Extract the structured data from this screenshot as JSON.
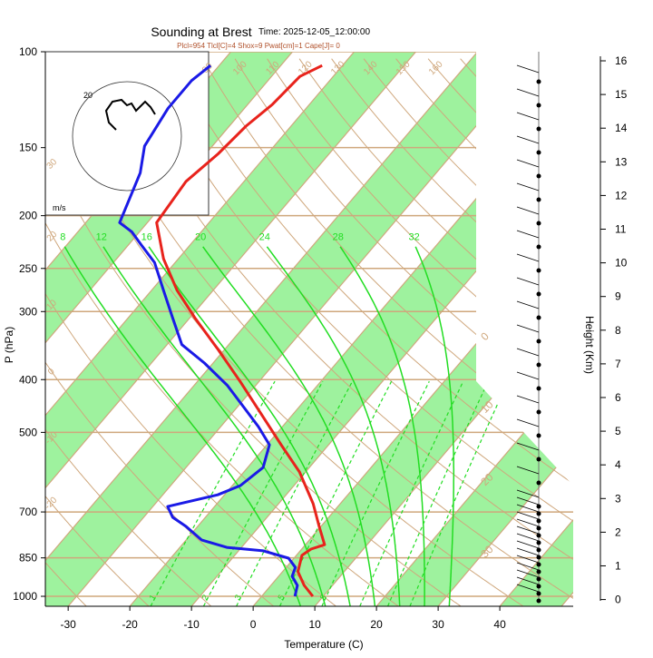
{
  "chart_data": {
    "type": "skewt",
    "title": "Sounding at Brest",
    "subtitle": "Time: 2025-12-05_12:00:00",
    "annotation": "Plcl=954 Tlcl[C]=4 Shox=9 Pwat[cm]=1 Cape[J]= 0",
    "xlabel": "Temperature (C)",
    "ylabel": "P (hPa)",
    "y2label": "Height (Km)",
    "hodograph_label": "20",
    "hodograph_unit": "m/s",
    "xlim": [
      -33.7,
      51.9
    ],
    "ylim": [
      1043,
      100
    ],
    "log_y": true,
    "y2lim": [
      -0.2,
      16.27
    ],
    "xticks": [
      -30,
      -20,
      -10,
      0,
      10,
      20,
      30,
      40
    ],
    "yticks": [
      100,
      150,
      200,
      250,
      300,
      400,
      500,
      700,
      850,
      1000
    ],
    "y2ticks": [
      0,
      1,
      2,
      3,
      4,
      5,
      6,
      7,
      8,
      9,
      10,
      11,
      12,
      13,
      14,
      15,
      16
    ],
    "isotherm_labels": [
      30,
      20,
      10,
      0
    ],
    "dry_adiabat_labels": [
      -20,
      -10,
      0,
      10,
      20,
      30,
      90,
      100,
      110,
      120,
      130,
      140,
      150,
      160
    ],
    "moist_adiabat_labels": [
      8,
      12,
      16,
      20,
      24,
      28,
      32
    ],
    "mixing_ratio_labels": [
      1,
      2,
      3,
      5,
      8
    ],
    "series": [
      {
        "color": "#e8231c",
        "pressure": [
          1000,
          955,
          901,
          841,
          819,
          804,
          744,
          676,
          591,
          527,
          469,
          403,
          352,
          308,
          274,
          240,
          206,
          173,
          154,
          137,
          125,
          111,
          106
        ],
        "values": [
          8.3,
          5.4,
          2.5,
          0.9,
          1.5,
          3.1,
          -0.3,
          -4.4,
          -11.0,
          -17.7,
          -24.4,
          -33.1,
          -41.1,
          -49.2,
          -55.9,
          -62.4,
          -68.5,
          -69.4,
          -68.0,
          -67.3,
          -66.0,
          -65.4,
          -63.3
        ]
      },
      {
        "color": "#1a1ae6",
        "pressure": [
          1000,
          955,
          919,
          885,
          851,
          825,
          813,
          788,
          744,
          716,
          684,
          651,
          626,
          580,
          527,
          488,
          452,
          410,
          373,
          345,
          308,
          274,
          244,
          226,
          214,
          206,
          167,
          149,
          127,
          113,
          106
        ],
        "values": [
          5.4,
          4.3,
          2.2,
          1.5,
          -0.9,
          -6.0,
          -12.4,
          -17.5,
          -21.9,
          -25.3,
          -27.6,
          -21.1,
          -18.7,
          -17.5,
          -19.6,
          -23.9,
          -28.6,
          -34.6,
          -41.4,
          -47.6,
          -52.8,
          -58.1,
          -63.3,
          -68.0,
          -71.3,
          -74.5,
          -78.0,
          -81.0,
          -82.4,
          -82.4,
          -81.4
        ]
      }
    ]
  }
}
